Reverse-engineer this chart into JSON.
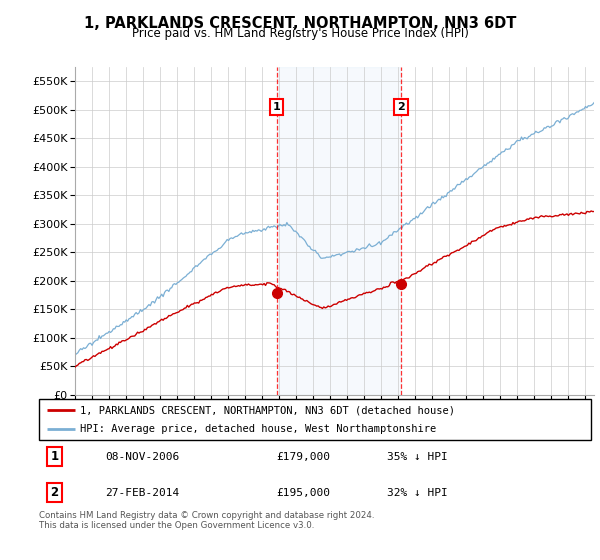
{
  "title": "1, PARKLANDS CRESCENT, NORTHAMPTON, NN3 6DT",
  "subtitle": "Price paid vs. HM Land Registry's House Price Index (HPI)",
  "ylabel_ticks": [
    "£0",
    "£50K",
    "£100K",
    "£150K",
    "£200K",
    "£250K",
    "£300K",
    "£350K",
    "£400K",
    "£450K",
    "£500K",
    "£550K"
  ],
  "ytick_values": [
    0,
    50000,
    100000,
    150000,
    200000,
    250000,
    300000,
    350000,
    400000,
    450000,
    500000,
    550000
  ],
  "ylim": [
    0,
    575000
  ],
  "hpi_color": "#7bafd4",
  "price_color": "#cc0000",
  "sale1_date": 2006.85,
  "sale1_price": 179000,
  "sale2_date": 2014.15,
  "sale2_price": 195000,
  "legend_line1": "1, PARKLANDS CRESCENT, NORTHAMPTON, NN3 6DT (detached house)",
  "legend_line2": "HPI: Average price, detached house, West Northamptonshire",
  "table_row1_num": "1",
  "table_row1_date": "08-NOV-2006",
  "table_row1_price": "£179,000",
  "table_row1_hpi": "35% ↓ HPI",
  "table_row2_num": "2",
  "table_row2_date": "27-FEB-2014",
  "table_row2_price": "£195,000",
  "table_row2_hpi": "32% ↓ HPI",
  "footnote": "Contains HM Land Registry data © Crown copyright and database right 2024.\nThis data is licensed under the Open Government Licence v3.0.",
  "background_color": "#ffffff",
  "grid_color": "#cccccc"
}
